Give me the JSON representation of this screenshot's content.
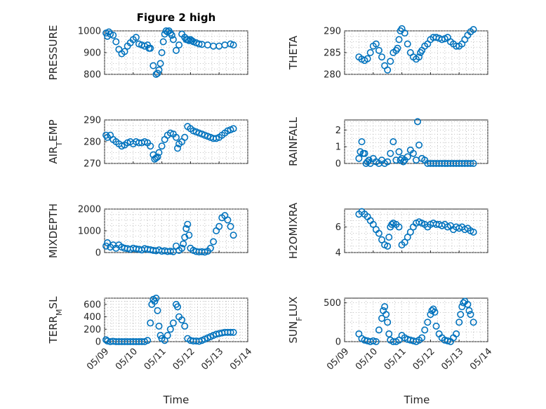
{
  "title": "Figure 2 high",
  "xlabel": "Time",
  "x_ticks": [
    "05/09",
    "05/10",
    "05/11",
    "05/12",
    "05/13",
    "05/14"
  ],
  "colors": {
    "marker": "#0072bd",
    "axis": "#262626",
    "grid": "#b0b0b0"
  },
  "chart_data": [
    {
      "type": "scatter",
      "name": "pressure",
      "ylabel": "PRESSURE",
      "ylim": [
        800,
        1000
      ],
      "yticks": [
        800,
        900,
        1000
      ],
      "xlim": [
        0,
        5
      ],
      "grid": true,
      "x": [
        0.05,
        0.1,
        0.15,
        0.2,
        0.3,
        0.4,
        0.5,
        0.6,
        0.7,
        0.8,
        0.9,
        1.0,
        1.1,
        1.2,
        1.3,
        1.4,
        1.5,
        1.55,
        1.6,
        1.7,
        1.8,
        1.85,
        1.9,
        1.95,
        2.0,
        2.05,
        2.1,
        2.15,
        2.2,
        2.25,
        2.3,
        2.35,
        2.4,
        2.5,
        2.6,
        2.7,
        2.8,
        2.85,
        2.9,
        2.95,
        3.0,
        3.05,
        3.1,
        3.2,
        3.3,
        3.4,
        3.6,
        3.8,
        4.0,
        4.2,
        4.4,
        4.5
      ],
      "y": [
        990,
        975,
        995,
        985,
        980,
        950,
        915,
        895,
        905,
        930,
        945,
        960,
        970,
        940,
        935,
        930,
        935,
        920,
        920,
        840,
        800,
        805,
        820,
        850,
        900,
        950,
        985,
        1000,
        995,
        1000,
        990,
        980,
        960,
        910,
        935,
        985,
        970,
        960,
        960,
        955,
        960,
        955,
        950,
        945,
        940,
        938,
        935,
        930,
        930,
        935,
        940,
        935
      ]
    },
    {
      "type": "scatter",
      "name": "theta",
      "ylabel": "THETA",
      "ylim": [
        280,
        290
      ],
      "yticks": [
        280,
        285,
        290
      ],
      "xlim": [
        0,
        5
      ],
      "grid": true,
      "x": [
        0.5,
        0.6,
        0.7,
        0.8,
        0.9,
        1.0,
        1.1,
        1.2,
        1.3,
        1.4,
        1.5,
        1.6,
        1.7,
        1.8,
        1.85,
        1.9,
        1.95,
        2.0,
        2.1,
        2.2,
        2.3,
        2.4,
        2.5,
        2.6,
        2.65,
        2.7,
        2.8,
        2.9,
        3.0,
        3.1,
        3.2,
        3.3,
        3.4,
        3.5,
        3.6,
        3.7,
        3.8,
        3.9,
        4.0,
        4.1,
        4.2,
        4.3,
        4.4,
        4.5
      ],
      "y": [
        284,
        283.5,
        283.2,
        283.6,
        285,
        286.5,
        287,
        285.5,
        284,
        282,
        281,
        283,
        285,
        285.5,
        286,
        288,
        290,
        290.5,
        289.5,
        287,
        285,
        284,
        283.5,
        284,
        285,
        285.5,
        286.5,
        287,
        288,
        288.5,
        288.5,
        288.3,
        288,
        288.2,
        288.5,
        287.5,
        287,
        286.5,
        286.5,
        287,
        288,
        289,
        289.8,
        290.3
      ]
    },
    {
      "type": "scatter",
      "name": "air-temp",
      "ylabel": "AIR_TEMP",
      "ylim": [
        270,
        290
      ],
      "yticks": [
        270,
        280,
        290
      ],
      "xlim": [
        0,
        5
      ],
      "grid": true,
      "x": [
        0.05,
        0.1,
        0.2,
        0.3,
        0.4,
        0.5,
        0.6,
        0.7,
        0.8,
        0.9,
        1.0,
        1.1,
        1.2,
        1.3,
        1.4,
        1.5,
        1.6,
        1.7,
        1.75,
        1.8,
        1.85,
        1.9,
        2.0,
        2.1,
        2.2,
        2.3,
        2.4,
        2.5,
        2.55,
        2.6,
        2.7,
        2.8,
        2.9,
        3.0,
        3.1,
        3.2,
        3.3,
        3.4,
        3.5,
        3.6,
        3.7,
        3.8,
        3.9,
        4.0,
        4.1,
        4.2,
        4.3,
        4.4,
        4.5
      ],
      "y": [
        283,
        282,
        283,
        281,
        280,
        279,
        278,
        278.5,
        279.5,
        280,
        279,
        280,
        279.5,
        279.5,
        280,
        279.5,
        278,
        274,
        272,
        272.5,
        273,
        275,
        278,
        281,
        283,
        284,
        283.5,
        282,
        277,
        279,
        280,
        282,
        287,
        286,
        285,
        284.5,
        284,
        283.5,
        283,
        282.5,
        282,
        281.5,
        281.5,
        282,
        283,
        284,
        285,
        285.5,
        286
      ]
    },
    {
      "type": "scatter",
      "name": "rainfall",
      "ylabel": "RAINFALL",
      "ylim": [
        0,
        2.6
      ],
      "yticks": [
        0,
        1,
        2
      ],
      "xlim": [
        0,
        5
      ],
      "grid": true,
      "x": [
        0.5,
        0.55,
        0.6,
        0.65,
        0.7,
        0.75,
        0.8,
        0.85,
        0.9,
        1.0,
        1.1,
        1.2,
        1.3,
        1.4,
        1.5,
        1.6,
        1.7,
        1.8,
        1.9,
        1.95,
        2.0,
        2.05,
        2.1,
        2.2,
        2.3,
        2.4,
        2.5,
        2.55,
        2.6,
        2.7,
        2.8,
        2.9,
        3.0,
        3.1,
        3.2,
        3.3,
        3.4,
        3.5,
        3.6,
        3.7,
        3.8,
        3.9,
        4.0,
        4.1,
        4.2,
        4.3,
        4.4,
        4.5
      ],
      "y": [
        0.3,
        0.7,
        1.3,
        0.6,
        0.6,
        0,
        0.1,
        0.2,
        0,
        0.3,
        0.1,
        0,
        0.2,
        0,
        0.1,
        0.6,
        1.3,
        0.2,
        0.7,
        0.2,
        0.3,
        0.1,
        0.2,
        0.4,
        0.8,
        0.6,
        0.2,
        2.5,
        1.1,
        0.3,
        0.2,
        0,
        0,
        0,
        0,
        0,
        0,
        0,
        0,
        0,
        0,
        0,
        0,
        0,
        0,
        0,
        0,
        0
      ]
    },
    {
      "type": "scatter",
      "name": "mixdepth",
      "ylabel": "MIXDEPTH",
      "ylim": [
        0,
        2000
      ],
      "yticks": [
        0,
        1000,
        2000
      ],
      "xlim": [
        0,
        5
      ],
      "grid": true,
      "x": [
        0.05,
        0.1,
        0.2,
        0.3,
        0.4,
        0.5,
        0.6,
        0.7,
        0.8,
        0.9,
        1.0,
        1.1,
        1.2,
        1.3,
        1.4,
        1.5,
        1.6,
        1.7,
        1.8,
        1.9,
        2.0,
        2.1,
        2.2,
        2.3,
        2.4,
        2.5,
        2.6,
        2.7,
        2.75,
        2.8,
        2.85,
        2.9,
        2.95,
        3.0,
        3.1,
        3.2,
        3.3,
        3.4,
        3.5,
        3.6,
        3.7,
        3.8,
        3.9,
        4.0,
        4.1,
        4.2,
        4.3,
        4.4,
        4.5
      ],
      "y": [
        300,
        450,
        250,
        350,
        200,
        350,
        250,
        200,
        180,
        150,
        200,
        170,
        150,
        120,
        180,
        150,
        130,
        100,
        80,
        120,
        60,
        80,
        50,
        60,
        40,
        300,
        100,
        200,
        400,
        700,
        1100,
        1300,
        800,
        200,
        100,
        50,
        30,
        40,
        20,
        60,
        200,
        500,
        1000,
        1200,
        1600,
        1700,
        1500,
        1200,
        800
      ]
    },
    {
      "type": "scatter",
      "name": "h2omixra",
      "ylabel": "H2OMIXRA",
      "ylim": [
        4,
        7.4
      ],
      "yticks": [
        4,
        6
      ],
      "xlim": [
        0,
        5
      ],
      "grid": true,
      "x": [
        0.5,
        0.6,
        0.7,
        0.8,
        0.9,
        1.0,
        1.1,
        1.2,
        1.3,
        1.4,
        1.5,
        1.55,
        1.6,
        1.65,
        1.7,
        1.8,
        1.9,
        2.0,
        2.1,
        2.2,
        2.3,
        2.4,
        2.5,
        2.6,
        2.7,
        2.8,
        2.9,
        3.0,
        3.1,
        3.2,
        3.3,
        3.4,
        3.5,
        3.6,
        3.7,
        3.8,
        3.9,
        4.0,
        4.1,
        4.2,
        4.3,
        4.4,
        4.5
      ],
      "y": [
        7,
        7.2,
        7,
        6.8,
        6.5,
        6.2,
        5.8,
        5.5,
        5.0,
        4.6,
        4.5,
        5.2,
        6.0,
        6.2,
        6.3,
        6.2,
        6.0,
        4.6,
        4.8,
        5.2,
        5.6,
        6.0,
        6.3,
        6.4,
        6.3,
        6.2,
        6.0,
        6.2,
        6.3,
        6.2,
        6.2,
        6.1,
        6.2,
        6.0,
        6.1,
        5.8,
        6.0,
        5.9,
        6.0,
        5.8,
        5.9,
        5.7,
        5.6
      ]
    },
    {
      "type": "scatter",
      "name": "terr-msl",
      "ylabel": "TERR_MSL",
      "ylim": [
        0,
        700
      ],
      "yticks": [
        0,
        200,
        400,
        600
      ],
      "xlim": [
        0,
        5
      ],
      "grid": true,
      "x": [
        0.05,
        0.1,
        0.2,
        0.3,
        0.4,
        0.5,
        0.6,
        0.7,
        0.8,
        0.9,
        1.0,
        1.1,
        1.2,
        1.3,
        1.4,
        1.5,
        1.6,
        1.65,
        1.7,
        1.75,
        1.8,
        1.85,
        1.9,
        1.95,
        2.0,
        2.1,
        2.2,
        2.3,
        2.4,
        2.5,
        2.55,
        2.6,
        2.7,
        2.8,
        2.9,
        3.0,
        3.1,
        3.2,
        3.3,
        3.4,
        3.5,
        3.6,
        3.7,
        3.8,
        3.9,
        4.0,
        4.1,
        4.2,
        4.3,
        4.4,
        4.5
      ],
      "y": [
        30,
        10,
        0,
        5,
        0,
        0,
        0,
        0,
        0,
        0,
        0,
        0,
        0,
        0,
        0,
        20,
        300,
        600,
        680,
        650,
        700,
        500,
        250,
        100,
        50,
        20,
        100,
        200,
        300,
        600,
        560,
        400,
        350,
        250,
        50,
        20,
        10,
        10,
        5,
        20,
        40,
        60,
        80,
        100,
        120,
        130,
        140,
        150,
        150,
        150,
        150
      ]
    },
    {
      "type": "scatter",
      "name": "sun-flux",
      "ylabel": "SUN_FLUX",
      "ylim": [
        0,
        560
      ],
      "yticks": [
        0,
        500
      ],
      "xlim": [
        0,
        5
      ],
      "grid": true,
      "x": [
        0.5,
        0.6,
        0.7,
        0.8,
        0.9,
        1.0,
        1.1,
        1.2,
        1.3,
        1.35,
        1.4,
        1.45,
        1.5,
        1.55,
        1.6,
        1.7,
        1.8,
        1.9,
        2.0,
        2.1,
        2.2,
        2.3,
        2.4,
        2.5,
        2.6,
        2.7,
        2.8,
        2.9,
        3.0,
        3.05,
        3.1,
        3.15,
        3.2,
        3.3,
        3.4,
        3.5,
        3.6,
        3.7,
        3.8,
        3.9,
        4.0,
        4.05,
        4.1,
        4.15,
        4.2,
        4.3,
        4.35,
        4.4,
        4.5
      ],
      "y": [
        100,
        40,
        20,
        10,
        0,
        10,
        0,
        150,
        300,
        400,
        450,
        350,
        250,
        100,
        20,
        0,
        0,
        20,
        80,
        50,
        30,
        20,
        10,
        0,
        20,
        50,
        150,
        250,
        350,
        400,
        420,
        380,
        200,
        100,
        50,
        20,
        10,
        0,
        50,
        100,
        250,
        350,
        450,
        500,
        520,
        480,
        400,
        350,
        250
      ]
    }
  ]
}
